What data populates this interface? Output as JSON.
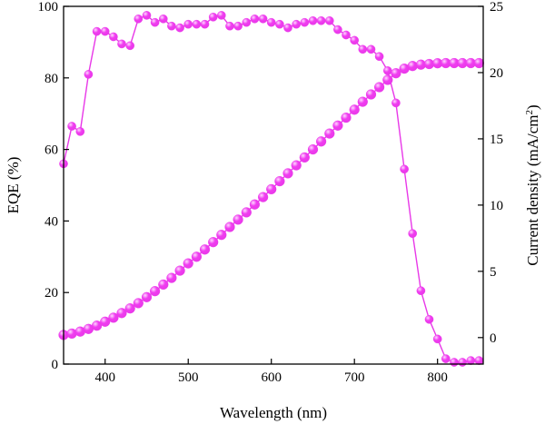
{
  "chart_data": {
    "type": "line",
    "title": "",
    "xlabel": "Wavelength (nm)",
    "ylabel_left": "EQE (%)",
    "ylabel_right_prefix": "Current density (mA/cm",
    "ylabel_right_sup": "2",
    "ylabel_right_suffix": ")",
    "xlim": [
      350,
      855
    ],
    "ylim_left": [
      0,
      100
    ],
    "ylim_right": [
      -2,
      25
    ],
    "x_ticks": [
      400,
      500,
      600,
      700,
      800
    ],
    "y_left_ticks": [
      0,
      20,
      40,
      60,
      80,
      100
    ],
    "y_right_ticks": [
      0,
      5,
      10,
      15,
      20,
      25
    ],
    "grid": false,
    "legend": "none",
    "marker_color": "#f03df0",
    "marker_highlight": "#ffd9ff",
    "line_color": "#e838e8",
    "series": [
      {
        "axis": "left",
        "x": [
          350,
          360,
          370,
          380,
          390,
          400,
          410,
          420,
          430,
          440,
          450,
          460,
          470,
          480,
          490,
          500,
          510,
          520,
          530,
          540,
          550,
          560,
          570,
          580,
          590,
          600,
          610,
          620,
          630,
          640,
          650,
          660,
          670,
          680,
          690,
          700,
          710,
          720,
          730,
          740,
          750,
          760,
          770,
          780,
          790,
          800,
          810,
          820,
          830,
          840,
          850
        ],
        "y": [
          56,
          66.5,
          65,
          81,
          93,
          93,
          91.5,
          89.5,
          89,
          96.5,
          97.5,
          95.5,
          96.5,
          94.5,
          94,
          95,
          95,
          95,
          97,
          97.5,
          94.5,
          94.5,
          95.5,
          96.5,
          96.5,
          95.5,
          95,
          94,
          95,
          95.5,
          96,
          96,
          96,
          93.5,
          92,
          90.5,
          88,
          88,
          86,
          82,
          73,
          54.5,
          36.5,
          20.5,
          12.5,
          7,
          1.5,
          0.5,
          0.5,
          1,
          1
        ]
      },
      {
        "axis": "right",
        "x": [
          350,
          360,
          370,
          380,
          390,
          400,
          410,
          420,
          430,
          440,
          450,
          460,
          470,
          480,
          490,
          500,
          510,
          520,
          530,
          540,
          550,
          560,
          570,
          580,
          590,
          600,
          610,
          620,
          630,
          640,
          650,
          660,
          670,
          680,
          690,
          700,
          710,
          720,
          730,
          740,
          750,
          760,
          770,
          780,
          790,
          800,
          810,
          820,
          830,
          840,
          850
        ],
        "y": [
          0.2,
          0.3,
          0.45,
          0.65,
          0.9,
          1.2,
          1.5,
          1.85,
          2.2,
          2.6,
          3.05,
          3.5,
          4.0,
          4.5,
          5.05,
          5.6,
          6.1,
          6.65,
          7.2,
          7.75,
          8.35,
          8.9,
          9.45,
          10.05,
          10.6,
          11.2,
          11.8,
          12.4,
          13.0,
          13.6,
          14.2,
          14.8,
          15.4,
          16.0,
          16.6,
          17.2,
          17.8,
          18.35,
          18.9,
          19.45,
          19.95,
          20.3,
          20.5,
          20.6,
          20.65,
          20.7,
          20.72,
          20.72,
          20.72,
          20.72,
          20.72
        ]
      }
    ]
  }
}
